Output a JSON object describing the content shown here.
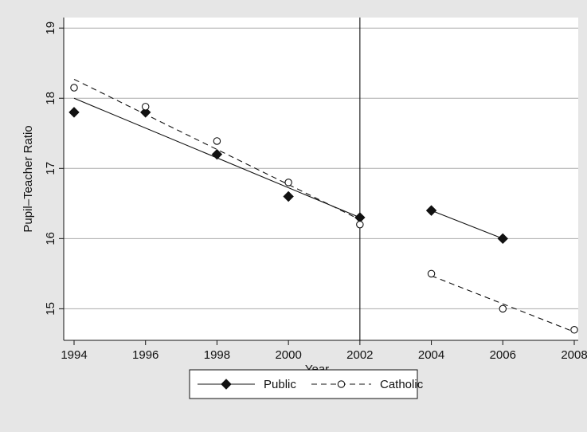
{
  "chart_data": {
    "type": "scatter",
    "title": "",
    "xlabel": "Year",
    "ylabel": "Pupil–Teacher Ratio",
    "xlim": [
      1994,
      2008
    ],
    "ylim": [
      14.55,
      19.15
    ],
    "x_ticks": [
      1994,
      1996,
      1998,
      2000,
      2002,
      2004,
      2006,
      2008
    ],
    "y_ticks": [
      15,
      16,
      17,
      18,
      19
    ],
    "grid": "horizontal",
    "vline_x": 2002,
    "legend_position": "bottom-center",
    "series": [
      {
        "name": "Public",
        "marker": "filled-diamond",
        "line_style": "solid",
        "points": [
          {
            "x": 1994,
            "y": 17.8
          },
          {
            "x": 1996,
            "y": 17.8
          },
          {
            "x": 1998,
            "y": 17.2
          },
          {
            "x": 2000,
            "y": 16.6
          },
          {
            "x": 2002,
            "y": 16.3
          },
          {
            "x": 2004,
            "y": 16.4
          },
          {
            "x": 2006,
            "y": 16.0
          }
        ],
        "fit_lines": [
          {
            "from": {
              "x": 1994,
              "y": 18.0
            },
            "to": {
              "x": 2002,
              "y": 16.3
            }
          },
          {
            "from": {
              "x": 2004,
              "y": 16.4
            },
            "to": {
              "x": 2006,
              "y": 16.0
            }
          }
        ]
      },
      {
        "name": "Catholic",
        "marker": "hollow-circle",
        "line_style": "dashed",
        "points": [
          {
            "x": 1994,
            "y": 18.15
          },
          {
            "x": 1996,
            "y": 17.88
          },
          {
            "x": 1998,
            "y": 17.39
          },
          {
            "x": 2000,
            "y": 16.8
          },
          {
            "x": 2002,
            "y": 16.2
          },
          {
            "x": 2004,
            "y": 15.5
          },
          {
            "x": 2006,
            "y": 15.0
          },
          {
            "x": 2008,
            "y": 14.7
          }
        ],
        "fit_lines": [
          {
            "from": {
              "x": 1994,
              "y": 18.27
            },
            "to": {
              "x": 2002,
              "y": 16.27
            }
          },
          {
            "from": {
              "x": 2004,
              "y": 15.47
            },
            "to": {
              "x": 2008,
              "y": 14.67
            }
          }
        ]
      }
    ]
  },
  "colors": {
    "background": "#e6e6e6",
    "plot_area": "#ffffff",
    "grid": "#aaaaaa",
    "ink": "#111111"
  }
}
